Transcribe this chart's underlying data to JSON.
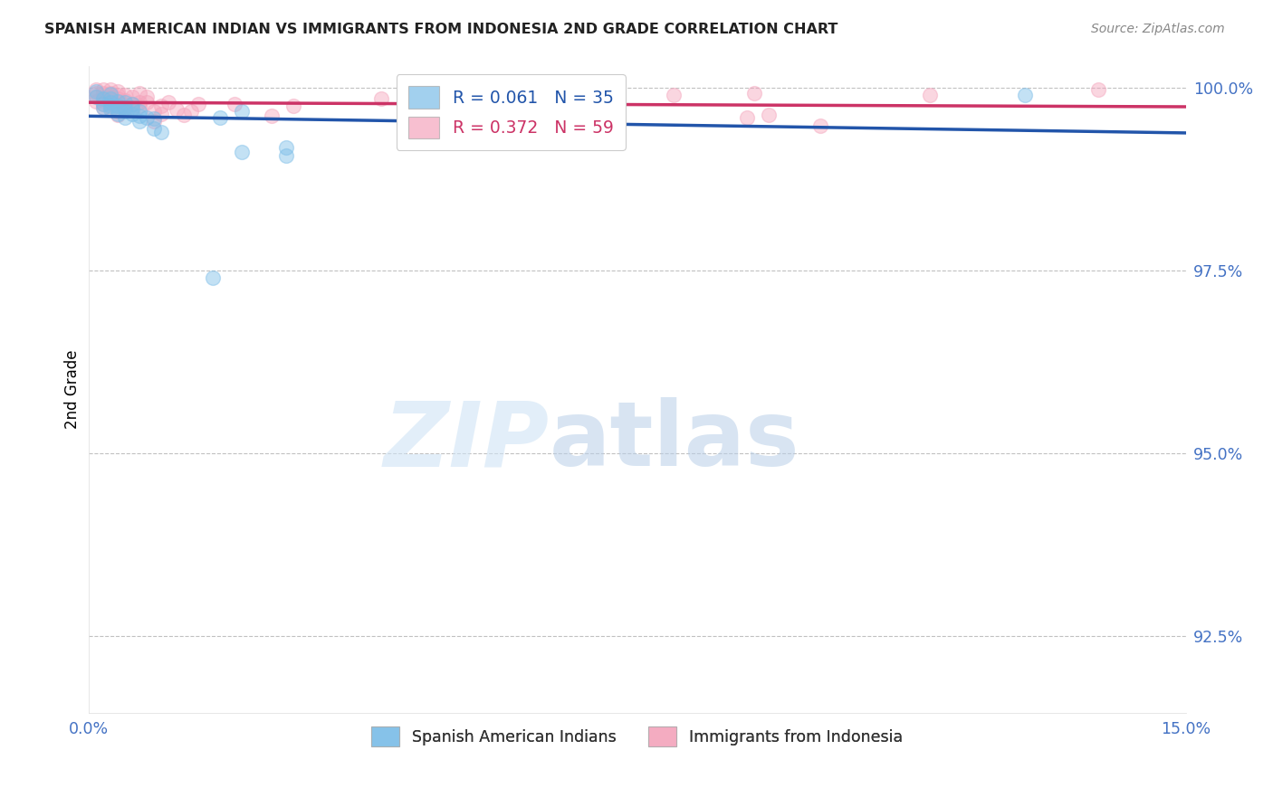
{
  "title": "SPANISH AMERICAN INDIAN VS IMMIGRANTS FROM INDONESIA 2ND GRADE CORRELATION CHART",
  "source": "Source: ZipAtlas.com",
  "ylabel": "2nd Grade",
  "xlim": [
    0.0,
    0.15
  ],
  "ylim": [
    0.9145,
    1.003
  ],
  "yticks": [
    0.925,
    0.95,
    0.975,
    1.0
  ],
  "ytick_labels": [
    "92.5%",
    "95.0%",
    "97.5%",
    "100.0%"
  ],
  "xticks": [
    0.0,
    0.05,
    0.1,
    0.15
  ],
  "xtick_labels": [
    "0.0%",
    "",
    "",
    "15.0%"
  ],
  "legend_r_blue": "R = 0.061",
  "legend_n_blue": "N = 35",
  "legend_r_pink": "R = 0.372",
  "legend_n_pink": "N = 59",
  "blue_scatter": [
    [
      0.001,
      0.9995
    ],
    [
      0.001,
      0.9988
    ],
    [
      0.002,
      0.9985
    ],
    [
      0.002,
      0.9978
    ],
    [
      0.002,
      0.9973
    ],
    [
      0.003,
      0.9992
    ],
    [
      0.003,
      0.9985
    ],
    [
      0.003,
      0.998
    ],
    [
      0.003,
      0.9975
    ],
    [
      0.003,
      0.997
    ],
    [
      0.004,
      0.9982
    ],
    [
      0.004,
      0.9975
    ],
    [
      0.004,
      0.997
    ],
    [
      0.004,
      0.9965
    ],
    [
      0.005,
      0.998
    ],
    [
      0.005,
      0.9973
    ],
    [
      0.005,
      0.9968
    ],
    [
      0.005,
      0.996
    ],
    [
      0.006,
      0.9978
    ],
    [
      0.006,
      0.9972
    ],
    [
      0.006,
      0.9965
    ],
    [
      0.007,
      0.9968
    ],
    [
      0.007,
      0.9962
    ],
    [
      0.007,
      0.9955
    ],
    [
      0.008,
      0.996
    ],
    [
      0.009,
      0.9958
    ],
    [
      0.009,
      0.9945
    ],
    [
      0.01,
      0.994
    ],
    [
      0.017,
      0.974
    ],
    [
      0.018,
      0.996
    ],
    [
      0.021,
      0.9968
    ],
    [
      0.021,
      0.9912
    ],
    [
      0.027,
      0.9918
    ],
    [
      0.027,
      0.9908
    ],
    [
      0.128,
      0.999
    ]
  ],
  "pink_scatter": [
    [
      0.001,
      0.9998
    ],
    [
      0.001,
      0.9993
    ],
    [
      0.001,
      0.9988
    ],
    [
      0.001,
      0.9982
    ],
    [
      0.002,
      0.9998
    ],
    [
      0.002,
      0.9993
    ],
    [
      0.002,
      0.9988
    ],
    [
      0.002,
      0.9983
    ],
    [
      0.002,
      0.9978
    ],
    [
      0.002,
      0.9973
    ],
    [
      0.003,
      0.9998
    ],
    [
      0.003,
      0.9993
    ],
    [
      0.003,
      0.9988
    ],
    [
      0.003,
      0.9983
    ],
    [
      0.003,
      0.9978
    ],
    [
      0.003,
      0.9973
    ],
    [
      0.004,
      0.9995
    ],
    [
      0.004,
      0.999
    ],
    [
      0.004,
      0.9985
    ],
    [
      0.004,
      0.998
    ],
    [
      0.004,
      0.9975
    ],
    [
      0.004,
      0.9968
    ],
    [
      0.004,
      0.9963
    ],
    [
      0.005,
      0.999
    ],
    [
      0.005,
      0.9983
    ],
    [
      0.005,
      0.9975
    ],
    [
      0.005,
      0.997
    ],
    [
      0.006,
      0.9988
    ],
    [
      0.006,
      0.9978
    ],
    [
      0.006,
      0.9972
    ],
    [
      0.007,
      0.9993
    ],
    [
      0.007,
      0.998
    ],
    [
      0.007,
      0.9975
    ],
    [
      0.008,
      0.9988
    ],
    [
      0.008,
      0.998
    ],
    [
      0.009,
      0.9968
    ],
    [
      0.009,
      0.9955
    ],
    [
      0.01,
      0.9975
    ],
    [
      0.01,
      0.9965
    ],
    [
      0.011,
      0.998
    ],
    [
      0.012,
      0.997
    ],
    [
      0.013,
      0.9963
    ],
    [
      0.014,
      0.9968
    ],
    [
      0.015,
      0.9978
    ],
    [
      0.02,
      0.9978
    ],
    [
      0.025,
      0.9962
    ],
    [
      0.028,
      0.9975
    ],
    [
      0.04,
      0.9985
    ],
    [
      0.05,
      0.9978
    ],
    [
      0.055,
      0.9982
    ],
    [
      0.063,
      0.9985
    ],
    [
      0.07,
      0.9958
    ],
    [
      0.08,
      0.999
    ],
    [
      0.09,
      0.996
    ],
    [
      0.091,
      0.9993
    ],
    [
      0.093,
      0.9963
    ],
    [
      0.1,
      0.9948
    ],
    [
      0.115,
      0.999
    ],
    [
      0.138,
      0.9998
    ]
  ],
  "blue_color": "#7bbde8",
  "pink_color": "#f4a4bc",
  "blue_line_color": "#2255aa",
  "pink_line_color": "#cc3366",
  "marker_size": 130,
  "alpha": 0.45,
  "background_color": "#ffffff",
  "grid_color": "#bbbbbb",
  "watermark_zip": "ZIP",
  "watermark_atlas": "atlas",
  "title_fontsize": 11.5,
  "tick_label_color": "#4472c4"
}
